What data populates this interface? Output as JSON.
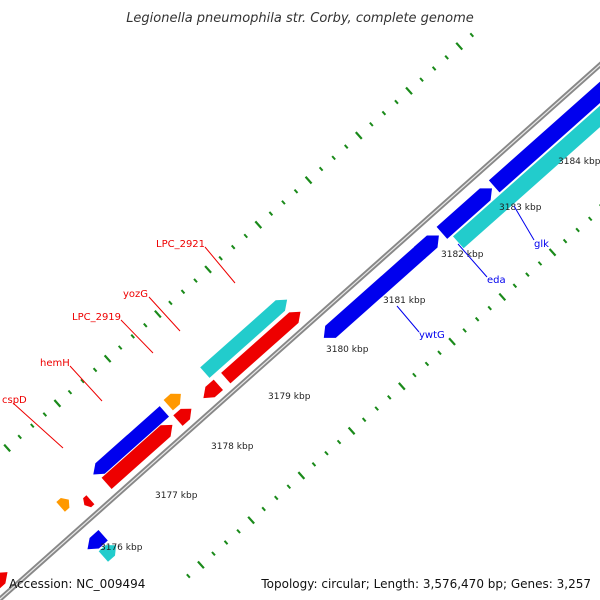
{
  "title": "Legionella pneumophila str. Corby, complete genome",
  "footer": {
    "accession": "Accession: NC_009494",
    "summary": "Topology: circular; Length: 3,576,470 bp; Genes: 3,257"
  },
  "scale_labels": [
    "3176 kbp",
    "3177 kbp",
    "3178 kbp",
    "3179 kbp",
    "3180 kbp",
    "3181 kbp",
    "3182 kbp",
    "3183 kbp",
    "3184 kbp"
  ],
  "gene_labels": {
    "top": [
      "cspD",
      "hemH",
      "LPC_2919",
      "yozG",
      "LPC_2921"
    ],
    "bottom": [
      "ywtG",
      "eda",
      "glk"
    ]
  },
  "colors": {
    "forward_cds": "#0000ee",
    "reverse_cds": "#ee0000",
    "rna": "#22cccc",
    "misc": "#ff9900",
    "backbone": "#888888",
    "ticks": "#1a8a1a",
    "label_top": "#ee0000",
    "label_bottom": "#0000ee"
  }
}
